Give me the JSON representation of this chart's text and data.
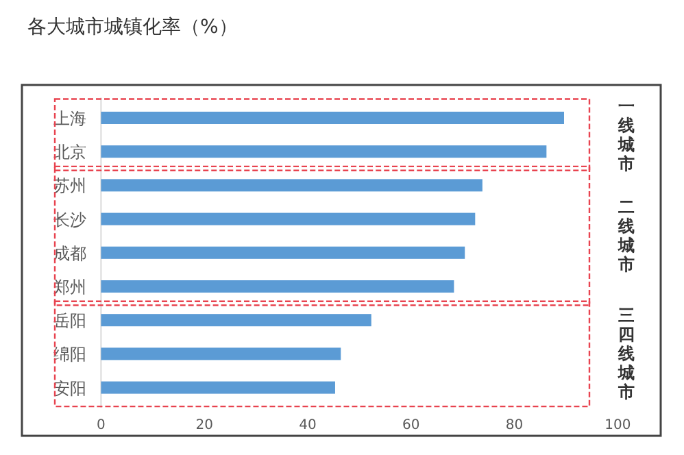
{
  "chart_data": {
    "type": "bar",
    "orientation": "horizontal",
    "title": "各大城市城镇化率（%）",
    "categories": [
      "上海",
      "北京",
      "苏州",
      "长沙",
      "成都",
      "郑州",
      "岳阳",
      "绵阳",
      "安阳"
    ],
    "values": [
      89.6,
      86.2,
      73.8,
      72.4,
      70.4,
      68.3,
      52.3,
      46.4,
      45.3
    ],
    "color": "#5b9bd5",
    "xlim": [
      0,
      100
    ],
    "xticks": [
      0,
      20,
      40,
      60,
      80,
      100
    ],
    "grid": false,
    "annotations": [
      "一线城市",
      "二线城市",
      "三四线城市"
    ]
  }
}
